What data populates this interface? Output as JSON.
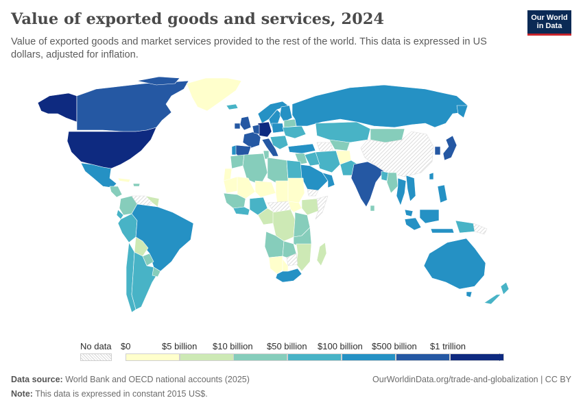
{
  "header": {
    "title": "Value of exported goods and services, 2024",
    "subtitle": "Value of exported goods and market services provided to the rest of the world. This data is expressed in US dollars, adjusted for inflation."
  },
  "logo": {
    "line1": "Our World",
    "line2": "in Data"
  },
  "legend": {
    "no_data_label": "No data",
    "bins": [
      {
        "label": "$0",
        "color": "#ffffcc"
      },
      {
        "label": "$5 billion",
        "color": "#cde9b5"
      },
      {
        "label": "$10 billion",
        "color": "#86cdbb"
      },
      {
        "label": "$50 billion",
        "color": "#48b3c6"
      },
      {
        "label": "$100 billion",
        "color": "#2591c4"
      },
      {
        "label": "$500 billion",
        "color": "#2558a3"
      },
      {
        "label": "$1 trillion",
        "color": "#0e2a80"
      }
    ]
  },
  "footer": {
    "source_label": "Data source:",
    "source_text": "World Bank and OECD national accounts (2025)",
    "note_label": "Note:",
    "note_text": "This data is expressed in constant 2015 US$.",
    "url_text": "OurWorldinData.org/trade-and-globalization | CC BY"
  },
  "map_data": {
    "type": "choropleth",
    "countries": [
      {
        "name": "United States",
        "category": "$1 trillion"
      },
      {
        "name": "Canada",
        "category": "$500 billion"
      },
      {
        "name": "Mexico",
        "category": "$100 billion"
      },
      {
        "name": "Brazil",
        "category": "$100 billion"
      },
      {
        "name": "Argentina",
        "category": "$50 billion"
      },
      {
        "name": "Chile",
        "category": "$50 billion"
      },
      {
        "name": "Peru",
        "category": "$50 billion"
      },
      {
        "name": "Colombia",
        "category": "$10 billion"
      },
      {
        "name": "Venezuela",
        "category": "No data"
      },
      {
        "name": "Bolivia",
        "category": "$5 billion"
      },
      {
        "name": "Greenland",
        "category": "$0"
      },
      {
        "name": "Russia",
        "category": "$100 billion"
      },
      {
        "name": "China",
        "category": "No data"
      },
      {
        "name": "India",
        "category": "$500 billion"
      },
      {
        "name": "Japan",
        "category": "$500 billion"
      },
      {
        "name": "Germany",
        "category": "$1 trillion"
      },
      {
        "name": "France",
        "category": "$500 billion"
      },
      {
        "name": "United Kingdom",
        "category": "$500 billion"
      },
      {
        "name": "Spain",
        "category": "$500 billion"
      },
      {
        "name": "Italy",
        "category": "$500 billion"
      },
      {
        "name": "Saudi Arabia",
        "category": "$100 billion"
      },
      {
        "name": "Kazakhstan",
        "category": "$50 billion"
      },
      {
        "name": "Mongolia",
        "category": "$10 billion"
      },
      {
        "name": "Australia",
        "category": "$100 billion"
      },
      {
        "name": "Indonesia",
        "category": "$100 billion"
      },
      {
        "name": "South Africa",
        "category": "$100 billion"
      },
      {
        "name": "Algeria",
        "category": "$10 billion"
      },
      {
        "name": "Libya",
        "category": "$10 billion"
      },
      {
        "name": "Egypt",
        "category": "$50 billion"
      },
      {
        "name": "Mali",
        "category": "$0"
      },
      {
        "name": "Niger",
        "category": "$0"
      },
      {
        "name": "Chad",
        "category": "$0"
      },
      {
        "name": "Sudan",
        "category": "$0"
      },
      {
        "name": "DR Congo",
        "category": "$5 billion"
      },
      {
        "name": "Angola",
        "category": "$10 billion"
      },
      {
        "name": "Namibia",
        "category": "$0"
      },
      {
        "name": "Madagascar",
        "category": "$5 billion"
      },
      {
        "name": "New Zealand",
        "category": "$50 billion"
      }
    ]
  }
}
